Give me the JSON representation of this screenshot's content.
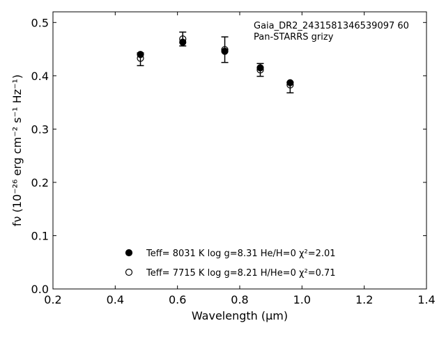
{
  "chart_data": {
    "type": "scatter",
    "annotation": [
      "Gaia_DR2_2431581346539097 60",
      "Pan-STARRS grizy"
    ],
    "xlabel": "Wavelength (μm)",
    "ylabel": "fν (10⁻²⁶ erg cm⁻² s⁻¹ Hz⁻¹)",
    "xlim": [
      0.2,
      1.4
    ],
    "ylim": [
      0.0,
      0.52
    ],
    "xticks": [
      0.2,
      0.4,
      0.6,
      0.8,
      1.0,
      1.2,
      1.4
    ],
    "xtick_labels": [
      "0.2",
      "0.4",
      "0.6",
      "0.8",
      "1.0",
      "1.2",
      "1.4"
    ],
    "yticks": [
      0.0,
      0.1,
      0.2,
      0.3,
      0.4,
      0.5
    ],
    "ytick_labels": [
      "0.0",
      "0.1",
      "0.2",
      "0.3",
      "0.4",
      "0.5"
    ],
    "grid": false,
    "observed": {
      "x": [
        0.481,
        0.617,
        0.752,
        0.866,
        0.962
      ],
      "y": [
        0.431,
        0.469,
        0.449,
        0.411,
        0.378
      ],
      "err": [
        0.012,
        0.013,
        0.024,
        0.012,
        0.01
      ]
    },
    "series": [
      {
        "name": "Teff= 8031 K log g=8.31 He/H=0 χ²=2.01",
        "marker": "filled-circle",
        "x": [
          0.481,
          0.617,
          0.752,
          0.866,
          0.962
        ],
        "y": [
          0.44,
          0.463,
          0.446,
          0.415,
          0.387
        ]
      },
      {
        "name": "Teff= 7715 K log g=8.21 H/He=0 χ²=0.71",
        "marker": "open-circle",
        "x": [
          0.481,
          0.617,
          0.752,
          0.866,
          0.962
        ],
        "y": [
          0.433,
          0.469,
          0.449,
          0.411,
          0.383
        ]
      }
    ],
    "legend_placement": "bottom-center",
    "color": "#000000"
  }
}
